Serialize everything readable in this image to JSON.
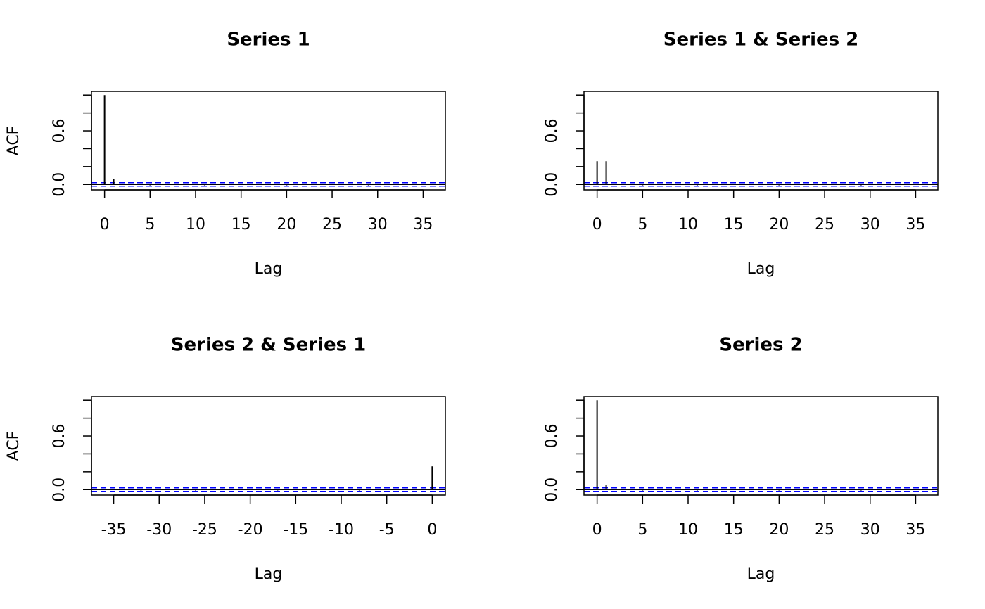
{
  "chart_data": [
    {
      "type": "acf",
      "title": "Series 1",
      "xlabel": "Lag",
      "ylabel": "ACF",
      "x": [
        0,
        1,
        2,
        3,
        4,
        5,
        6,
        7,
        8,
        9,
        10,
        11,
        12,
        13,
        14,
        15,
        16,
        17,
        18,
        19,
        20,
        21,
        22,
        23,
        24,
        25,
        26,
        27,
        28,
        29,
        30,
        31,
        32,
        33,
        34,
        35,
        36
      ],
      "values": [
        1,
        0.06,
        0.01,
        0,
        0,
        -0.01,
        0,
        0.01,
        0,
        0,
        0,
        -0.01,
        0,
        0,
        0.01,
        0,
        0,
        0,
        0.01,
        0,
        -0.01,
        0,
        0,
        0,
        0,
        0.01,
        0,
        0,
        0,
        -0.01,
        0,
        0,
        0,
        0,
        0.01,
        0,
        0
      ],
      "xlim": [
        -1.44,
        37.44
      ],
      "ylim": [
        -0.061,
        1.041
      ],
      "xticks": [
        0,
        5,
        10,
        15,
        20,
        25,
        30,
        35
      ],
      "yticks": [
        {
          "value": 0,
          "label": "0.0"
        },
        {
          "value": 0.2,
          "label": null
        },
        {
          "value": 0.4,
          "label": null
        },
        {
          "value": 0.6,
          "label": "0.6"
        },
        {
          "value": 0.8,
          "label": null
        },
        {
          "value": 1,
          "label": null
        }
      ],
      "ci": [
        -0.02,
        0.02
      ],
      "ci_color": "#0000ff",
      "color": "#000000"
    },
    {
      "type": "acf",
      "title": "Series 1 & Series 2",
      "xlabel": "Lag",
      "x": [
        0,
        1,
        2,
        3,
        4,
        5,
        6,
        7,
        8,
        9,
        10,
        11,
        12,
        13,
        14,
        15,
        16,
        17,
        18,
        19,
        20,
        21,
        22,
        23,
        24,
        25,
        26,
        27,
        28,
        29,
        30,
        31,
        32,
        33,
        34,
        35,
        36
      ],
      "values": [
        0.26,
        0.26,
        0.01,
        0,
        0,
        -0.01,
        0,
        0.01,
        0,
        0,
        0,
        -0.01,
        0,
        0,
        0.01,
        0,
        0,
        0,
        0.01,
        0,
        -0.01,
        0,
        0,
        0,
        0,
        0.01,
        0,
        0,
        0,
        -0.01,
        0,
        0,
        0,
        0,
        0.01,
        0,
        0
      ],
      "xlim": [
        -1.44,
        37.44
      ],
      "ylim": [
        -0.061,
        1.041
      ],
      "xticks": [
        0,
        5,
        10,
        15,
        20,
        25,
        30,
        35
      ],
      "yticks": [
        {
          "value": 0,
          "label": "0.0"
        },
        {
          "value": 0.2,
          "label": null
        },
        {
          "value": 0.4,
          "label": null
        },
        {
          "value": 0.6,
          "label": "0.6"
        },
        {
          "value": 0.8,
          "label": null
        },
        {
          "value": 1,
          "label": null
        }
      ],
      "ci": [
        -0.02,
        0.02
      ],
      "ci_color": "#0000ff",
      "color": "#000000"
    },
    {
      "type": "acf",
      "title": "Series 2 & Series 1",
      "xlabel": "Lag",
      "ylabel": "ACF",
      "x": [
        -36,
        -35,
        -34,
        -33,
        -32,
        -31,
        -30,
        -29,
        -28,
        -27,
        -26,
        -25,
        -24,
        -23,
        -22,
        -21,
        -20,
        -19,
        -18,
        -17,
        -16,
        -15,
        -14,
        -13,
        -12,
        -11,
        -10,
        -9,
        -8,
        -7,
        -6,
        -5,
        -4,
        -3,
        -2,
        -1,
        0
      ],
      "values": [
        0,
        0.01,
        0,
        0,
        -0.01,
        0,
        0.01,
        0,
        0,
        0,
        -0.01,
        0,
        0,
        0.01,
        0,
        0,
        0,
        0.01,
        0,
        -0.01,
        0,
        0,
        0,
        0,
        0.01,
        0,
        0,
        0,
        -0.01,
        0,
        0,
        0,
        0,
        0.01,
        0,
        0,
        0.26
      ],
      "xlim": [
        -37.44,
        1.44
      ],
      "ylim": [
        -0.061,
        1.041
      ],
      "xticks": [
        -35,
        -30,
        -25,
        -20,
        -15,
        -10,
        -5,
        0
      ],
      "yticks": [
        {
          "value": 0,
          "label": "0.0"
        },
        {
          "value": 0.2,
          "label": null
        },
        {
          "value": 0.4,
          "label": null
        },
        {
          "value": 0.6,
          "label": "0.6"
        },
        {
          "value": 0.8,
          "label": null
        },
        {
          "value": 1,
          "label": null
        }
      ],
      "ci": [
        -0.02,
        0.02
      ],
      "ci_color": "#0000ff",
      "color": "#000000"
    },
    {
      "type": "acf",
      "title": "Series 2",
      "xlabel": "Lag",
      "x": [
        0,
        1,
        2,
        3,
        4,
        5,
        6,
        7,
        8,
        9,
        10,
        11,
        12,
        13,
        14,
        15,
        16,
        17,
        18,
        19,
        20,
        21,
        22,
        23,
        24,
        25,
        26,
        27,
        28,
        29,
        30,
        31,
        32,
        33,
        34,
        35,
        36
      ],
      "values": [
        1,
        0.05,
        0.01,
        0,
        0,
        -0.01,
        0,
        0.01,
        0,
        0,
        0,
        -0.01,
        0,
        0,
        0.01,
        0,
        0,
        0,
        0.01,
        0,
        -0.01,
        0,
        0,
        0,
        0,
        0.01,
        0,
        0,
        0,
        -0.01,
        0,
        0,
        0,
        0,
        0.01,
        0,
        0
      ],
      "xlim": [
        -1.44,
        37.44
      ],
      "ylim": [
        -0.061,
        1.041
      ],
      "xticks": [
        0,
        5,
        10,
        15,
        20,
        25,
        30,
        35
      ],
      "yticks": [
        {
          "value": 0,
          "label": "0.0"
        },
        {
          "value": 0.2,
          "label": null
        },
        {
          "value": 0.4,
          "label": null
        },
        {
          "value": 0.6,
          "label": "0.6"
        },
        {
          "value": 0.8,
          "label": null
        },
        {
          "value": 1,
          "label": null
        }
      ],
      "ci": [
        -0.02,
        0.02
      ],
      "ci_color": "#0000ff",
      "color": "#000000"
    }
  ]
}
